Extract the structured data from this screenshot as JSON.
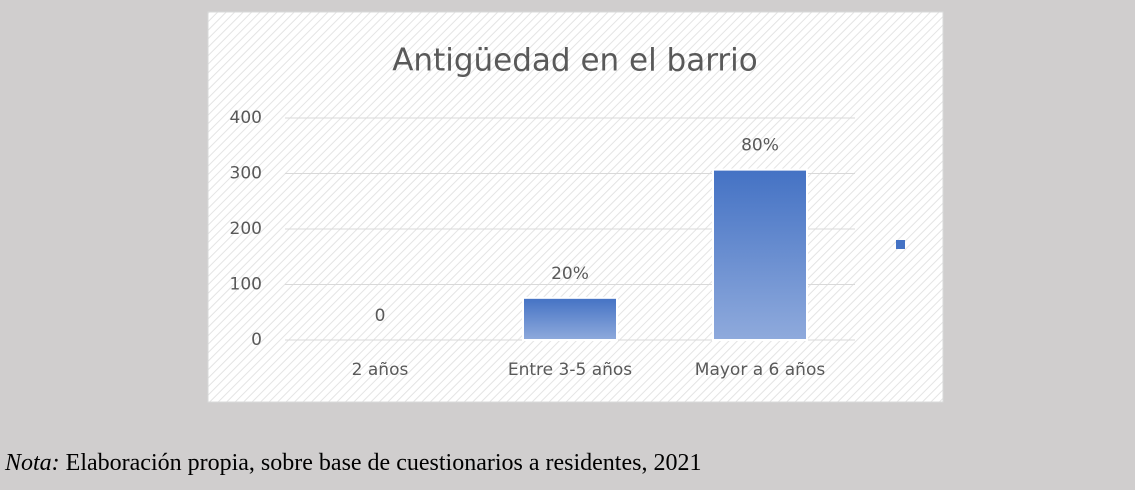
{
  "chart_data": {
    "type": "bar",
    "title": "Antigüedad en el barrio",
    "categories": [
      "2 años",
      "Entre 3-5 años",
      "Mayor a 6 años"
    ],
    "values": [
      0,
      76,
      307
    ],
    "value_labels": [
      "0",
      "20%",
      "80%"
    ],
    "color": "#4472c4",
    "ylim": [
      0,
      400
    ],
    "yticks": [
      0,
      100,
      200,
      300,
      400
    ],
    "grid": true
  },
  "note": {
    "label": "Nota:",
    "text": " Elaboración propia, sobre base de cuestionarios a residentes, 2021"
  }
}
